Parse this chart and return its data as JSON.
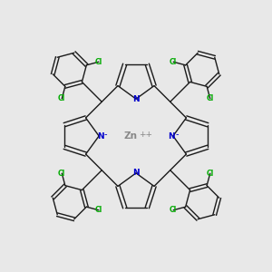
{
  "background_color": "#e8e8e8",
  "bond_color": "#1a1a1a",
  "N_color": "#0000cc",
  "Cl_color": "#00aa00",
  "Zn_color": "#888888",
  "figsize": [
    3.0,
    3.0
  ],
  "dpi": 100,
  "lw": 1.0,
  "xlim": [
    -4.8,
    4.8
  ],
  "ylim": [
    -4.8,
    4.8
  ]
}
